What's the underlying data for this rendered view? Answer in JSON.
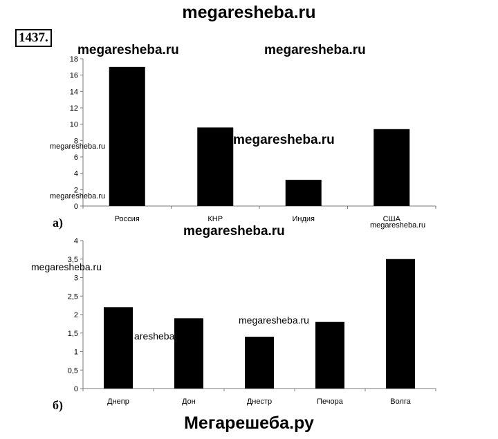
{
  "problem_number": "1437.",
  "watermarks": {
    "top": "megaresheba.ru",
    "bottom": "Мегарешеба.ру",
    "items": [
      "megaresheba.ru",
      "megaresheba.ru",
      "megaresheba.ru",
      "megaresheba.ru",
      "megaresheba.ru",
      "megaresheba.ru",
      "megaresheba.ru",
      "megaresheba.ru",
      "megaresheba.ru",
      "aresheba"
    ]
  },
  "part_labels": {
    "a": "а)",
    "b": "б)"
  },
  "colors": {
    "bar": "#000000",
    "axis": "#7a7a7a"
  },
  "chart_data": [
    {
      "type": "bar",
      "categories": [
        "Россия",
        "КНР",
        "Индия",
        "США"
      ],
      "values": [
        17,
        9.6,
        3.2,
        9.4
      ],
      "title": "",
      "xlabel": "",
      "ylabel": "",
      "ylim": [
        0,
        18
      ],
      "yticks": [
        "0",
        "2",
        "4",
        "6",
        "8",
        "10",
        "12",
        "14",
        "16",
        "18"
      ],
      "grid": false
    },
    {
      "type": "bar",
      "categories": [
        "Днепр",
        "Дон",
        "Днестр",
        "Печора",
        "Волга"
      ],
      "values": [
        2.2,
        1.9,
        1.4,
        1.8,
        3.5
      ],
      "title": "",
      "xlabel": "",
      "ylabel": "",
      "ylim": [
        0,
        4
      ],
      "yticks": [
        "0",
        "0,5",
        "1",
        "1,5",
        "2",
        "2,5",
        "3",
        "3,5",
        "4"
      ],
      "grid": false
    }
  ]
}
